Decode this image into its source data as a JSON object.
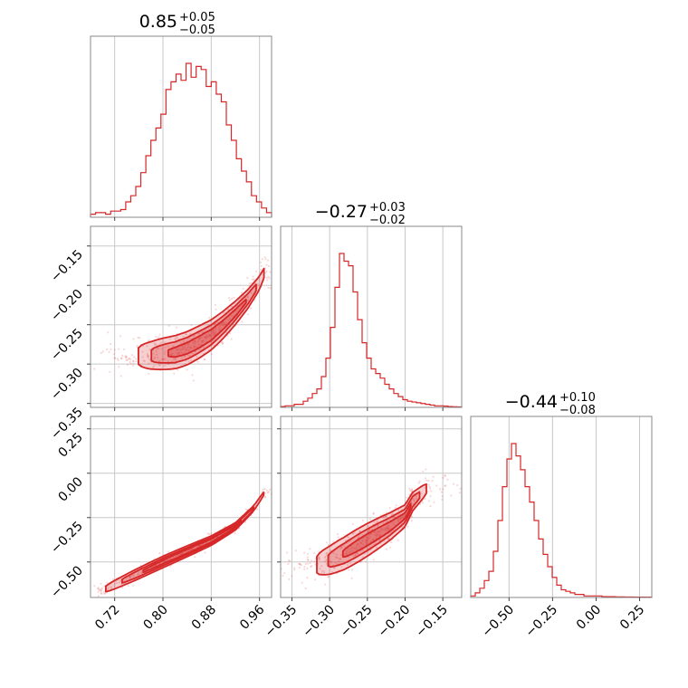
{
  "chart_data": {
    "type": "corner",
    "color": "#d62728",
    "parameters": [
      {
        "title": "0.85",
        "title_sup": "+0.05",
        "title_sub": "−0.05",
        "range": [
          0.68,
          0.98
        ],
        "ticks": [
          0.72,
          0.8,
          0.88,
          0.96
        ],
        "tick_labels": [
          "0.72",
          "0.80",
          "0.88",
          "0.96"
        ],
        "hist_heights": [
          0.02,
          0.03,
          0.03,
          0.02,
          0.04,
          0.04,
          0.05,
          0.1,
          0.14,
          0.2,
          0.29,
          0.4,
          0.5,
          0.58,
          0.67,
          0.83,
          0.88,
          0.93,
          0.89,
          1.0,
          0.91,
          0.98,
          0.96,
          0.85,
          0.88,
          0.8,
          0.75,
          0.6,
          0.5,
          0.38,
          0.3,
          0.23,
          0.14,
          0.1,
          0.06,
          0.03
        ]
      },
      {
        "title": "−0.27",
        "title_sup": "+0.03",
        "title_sub": "−0.02",
        "range": [
          -0.365,
          -0.125
        ],
        "ticks": [
          -0.35,
          -0.3,
          -0.25,
          -0.2,
          -0.15
        ],
        "tick_labels": [
          "−0.35",
          "−0.30",
          "−0.25",
          "−0.20",
          "−0.15"
        ],
        "hist_heights": [
          0.005,
          0.01,
          0.01,
          0.02,
          0.02,
          0.04,
          0.06,
          0.09,
          0.12,
          0.2,
          0.32,
          0.52,
          0.78,
          1.0,
          0.95,
          0.92,
          0.75,
          0.57,
          0.42,
          0.32,
          0.25,
          0.22,
          0.19,
          0.15,
          0.12,
          0.09,
          0.07,
          0.05,
          0.04,
          0.035,
          0.03,
          0.025,
          0.02,
          0.015,
          0.01,
          0.01,
          0.008,
          0.005,
          0.004,
          0.003
        ]
      },
      {
        "title": "−0.44",
        "title_sup": "+0.10",
        "title_sub": "−0.08",
        "range": [
          -0.72,
          0.32
        ],
        "ticks": [
          -0.5,
          -0.25,
          0.0,
          0.25
        ],
        "tick_labels": [
          "−0.50",
          "−0.25",
          "0.00",
          "0.25"
        ],
        "hist_heights": [
          0.01,
          0.03,
          0.06,
          0.11,
          0.17,
          0.3,
          0.5,
          0.72,
          0.9,
          1.0,
          0.92,
          0.83,
          0.72,
          0.62,
          0.5,
          0.38,
          0.28,
          0.2,
          0.13,
          0.08,
          0.05,
          0.04,
          0.03,
          0.02,
          0.02,
          0.01,
          0.01,
          0.01,
          0.01,
          0.005,
          0.005,
          0.005,
          0.004,
          0.004,
          0.003,
          0.003,
          0.002,
          0.002,
          0.002,
          0.002
        ]
      }
    ],
    "pair_plots": [
      {
        "x_param": 0,
        "y_param": 1,
        "y_ticks": [
          -0.35,
          -0.3,
          -0.25,
          -0.2,
          -0.15
        ],
        "y_tick_labels": [
          "−0.35",
          "−0.30",
          "−0.25",
          "−0.20",
          "−0.15"
        ],
        "y_range": [
          -0.355,
          -0.125
        ],
        "ridge_x": [
          0.755,
          0.78,
          0.8,
          0.82,
          0.84,
          0.86,
          0.88,
          0.9,
          0.92,
          0.94,
          0.96,
          0.97
        ],
        "ridge_y": [
          -0.29,
          -0.289,
          -0.287,
          -0.285,
          -0.28,
          -0.272,
          -0.263,
          -0.25,
          -0.235,
          -0.218,
          -0.197,
          -0.18
        ]
      },
      {
        "x_param": 0,
        "y_param": 2,
        "y_ticks": [
          -0.5,
          -0.25,
          0.0,
          0.25
        ],
        "y_tick_labels": [
          "−0.50",
          "−0.25",
          "0.00",
          "0.25"
        ],
        "y_range": [
          -0.7,
          0.32
        ],
        "ridge_x": [
          0.7,
          0.75,
          0.8,
          0.84,
          0.88,
          0.92,
          0.95,
          0.97
        ],
        "ridge_y": [
          -0.66,
          -0.58,
          -0.5,
          -0.44,
          -0.38,
          -0.3,
          -0.2,
          -0.1
        ]
      },
      {
        "x_param": 1,
        "y_param": 2,
        "y_ticks": [
          -0.5,
          -0.25,
          0.0,
          0.25
        ],
        "y_tick_labels": [],
        "y_range": [
          -0.7,
          0.32
        ],
        "ridge_x": [
          -0.32,
          -0.3,
          -0.28,
          -0.26,
          -0.24,
          -0.22,
          -0.2,
          -0.19,
          -0.17
        ],
        "ridge_y": [
          -0.52,
          -0.49,
          -0.45,
          -0.4,
          -0.35,
          -0.3,
          -0.24,
          -0.16,
          -0.08
        ]
      }
    ]
  }
}
